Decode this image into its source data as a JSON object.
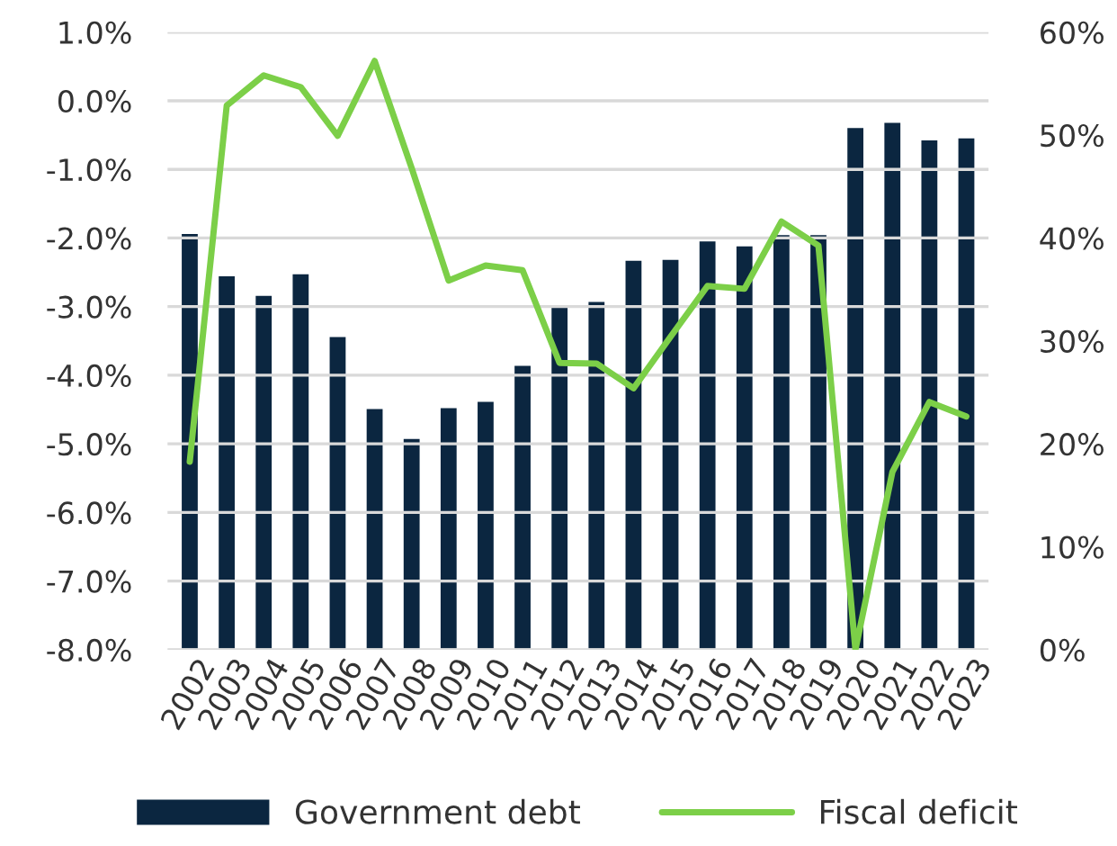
{
  "chart_data": {
    "type": "bar",
    "categories": [
      "2002",
      "2003",
      "2004",
      "2005",
      "2006",
      "2007",
      "2008",
      "2009",
      "2010",
      "2011",
      "2012",
      "2013",
      "2014",
      "2015",
      "2016",
      "2017",
      "2018",
      "2019",
      "2020",
      "2021",
      "2022",
      "2023"
    ],
    "series": [
      {
        "name": "Government debt",
        "axis": "y2",
        "color": "#0b2640",
        "values": [
          40.5,
          36.4,
          34.5,
          36.6,
          30.5,
          23.5,
          20.6,
          23.6,
          24.2,
          27.7,
          33.6,
          33.9,
          37.9,
          38.0,
          39.8,
          39.3,
          40.4,
          40.4,
          50.8,
          51.3,
          49.6,
          49.8
        ]
      },
      {
        "name": "Fiscal deficit",
        "type": "line",
        "axis": "y",
        "color": "#7ccf48",
        "values": [
          -5.26,
          -0.07,
          0.37,
          0.2,
          -0.51,
          0.58,
          -0.98,
          -2.62,
          -2.4,
          -2.47,
          -3.82,
          -3.83,
          -4.19,
          -3.44,
          -2.7,
          -2.74,
          -1.76,
          -2.11,
          -8.0,
          -5.41,
          -4.39,
          -4.6
        ]
      }
    ],
    "ylim": [
      -8,
      1
    ],
    "yticks": [
      {
        "value": -8,
        "label": "-8.0%"
      },
      {
        "value": -7,
        "label": "-7.0%"
      },
      {
        "value": -6,
        "label": "-6.0%"
      },
      {
        "value": -5,
        "label": "-5.0%"
      },
      {
        "value": -4,
        "label": "-4.0%"
      },
      {
        "value": -3,
        "label": "-3.0%"
      },
      {
        "value": -2,
        "label": "-2.0%"
      },
      {
        "value": -1,
        "label": "-1.0%"
      },
      {
        "value": 0,
        "label": "0.0%"
      },
      {
        "value": 1,
        "label": "1.0%"
      }
    ],
    "y2lim": [
      0,
      60
    ],
    "y2ticks": [
      {
        "value": 0,
        "label": "0%"
      },
      {
        "value": 10,
        "label": "10%"
      },
      {
        "value": 20,
        "label": "20%"
      },
      {
        "value": 30,
        "label": "30%"
      },
      {
        "value": 40,
        "label": "40%"
      },
      {
        "value": 50,
        "label": "50%"
      },
      {
        "value": 60,
        "label": "60%"
      }
    ],
    "grid": "y",
    "legend": "bottom",
    "marker": "none",
    "line_style": "solid"
  }
}
